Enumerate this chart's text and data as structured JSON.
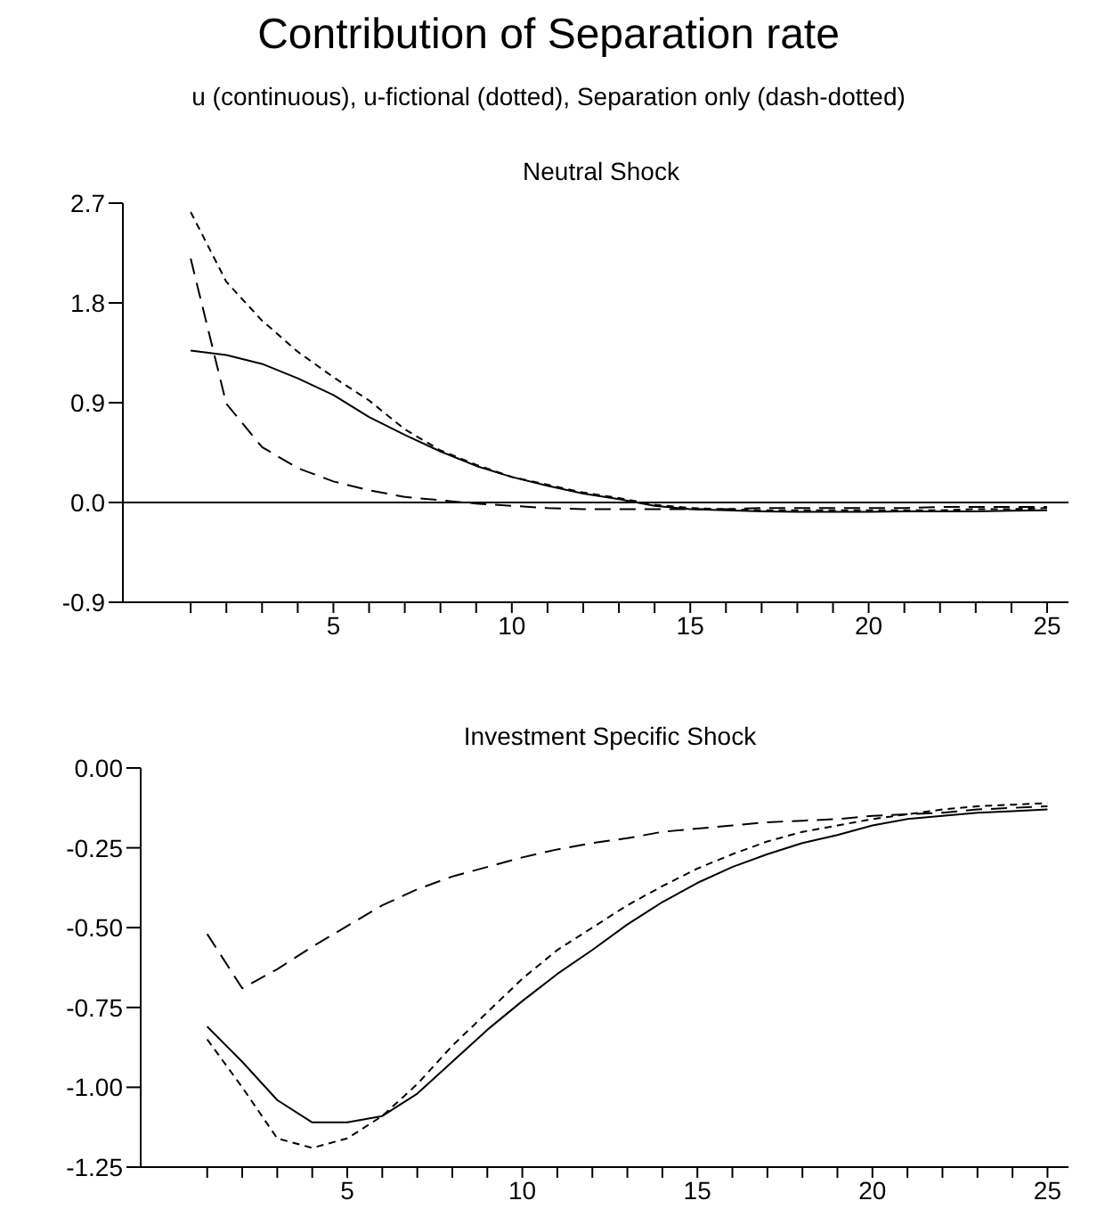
{
  "chart_data": [
    {
      "type": "line",
      "title": "Neutral Shock",
      "x": [
        1,
        2,
        3,
        4,
        5,
        6,
        7,
        8,
        9,
        10,
        11,
        12,
        13,
        14,
        15,
        16,
        17,
        18,
        19,
        20,
        21,
        22,
        23,
        24,
        25
      ],
      "xlim": [
        -0.9,
        25.6
      ],
      "xticks": [
        {
          "value": 1,
          "label": null
        },
        {
          "value": 2,
          "label": null
        },
        {
          "value": 3,
          "label": null
        },
        {
          "value": 4,
          "label": null
        },
        5,
        {
          "value": 6,
          "label": null
        },
        {
          "value": 7,
          "label": null
        },
        {
          "value": 8,
          "label": null
        },
        {
          "value": 9,
          "label": null
        },
        10,
        {
          "value": 11,
          "label": null
        },
        {
          "value": 12,
          "label": null
        },
        {
          "value": 13,
          "label": null
        },
        {
          "value": 14,
          "label": null
        },
        15,
        {
          "value": 16,
          "label": null
        },
        {
          "value": 17,
          "label": null
        },
        {
          "value": 18,
          "label": null
        },
        {
          "value": 19,
          "label": null
        },
        20,
        {
          "value": 21,
          "label": null
        },
        {
          "value": 22,
          "label": null
        },
        {
          "value": 23,
          "label": null
        },
        {
          "value": 24,
          "label": null
        },
        25
      ],
      "ylim": [
        -0.9,
        2.7
      ],
      "yticks": [
        -0.9,
        {
          "value": 0,
          "label": "0.0"
        },
        0.9,
        1.8,
        2.7
      ],
      "ref_lines": [
        {
          "axis": "y",
          "value": 0,
          "color": "#000000"
        }
      ],
      "series": [
        {
          "color": "#000000",
          "line_style": "solid",
          "values": [
            1.37,
            1.33,
            1.25,
            1.12,
            0.97,
            0.77,
            0.61,
            0.46,
            0.33,
            0.23,
            0.15,
            0.08,
            0.03,
            -0.03,
            -0.06,
            -0.07,
            -0.08,
            -0.085,
            -0.085,
            -0.085,
            -0.08,
            -0.08,
            -0.08,
            -0.075,
            -0.07
          ]
        },
        {
          "color": "#000000",
          "line_style": "dotted",
          "values": [
            2.62,
            1.99,
            1.64,
            1.36,
            1.13,
            0.92,
            0.66,
            0.47,
            0.34,
            0.23,
            0.16,
            0.09,
            0.04,
            -0.02,
            -0.05,
            -0.06,
            -0.07,
            -0.07,
            -0.07,
            -0.07,
            -0.07,
            -0.07,
            -0.06,
            -0.06,
            -0.05
          ]
        },
        {
          "color": "#000000",
          "line_style": "dashed",
          "values": [
            2.2,
            0.89,
            0.5,
            0.31,
            0.19,
            0.11,
            0.05,
            0.02,
            -0.01,
            -0.03,
            -0.05,
            -0.06,
            -0.06,
            -0.06,
            -0.06,
            -0.06,
            -0.05,
            -0.05,
            -0.05,
            -0.05,
            -0.05,
            -0.04,
            -0.04,
            -0.04,
            -0.04
          ]
        }
      ]
    },
    {
      "type": "line",
      "title": "Investment Specific Shock",
      "x": [
        1,
        2,
        3,
        4,
        5,
        6,
        7,
        8,
        9,
        10,
        11,
        12,
        13,
        14,
        15,
        16,
        17,
        18,
        19,
        20,
        21,
        22,
        23,
        24,
        25
      ],
      "xlim": [
        -0.9,
        25.6
      ],
      "xticks": [
        {
          "value": 1,
          "label": null
        },
        {
          "value": 2,
          "label": null
        },
        {
          "value": 3,
          "label": null
        },
        {
          "value": 4,
          "label": null
        },
        5,
        {
          "value": 6,
          "label": null
        },
        {
          "value": 7,
          "label": null
        },
        {
          "value": 8,
          "label": null
        },
        {
          "value": 9,
          "label": null
        },
        10,
        {
          "value": 11,
          "label": null
        },
        {
          "value": 12,
          "label": null
        },
        {
          "value": 13,
          "label": null
        },
        {
          "value": 14,
          "label": null
        },
        15,
        {
          "value": 16,
          "label": null
        },
        {
          "value": 17,
          "label": null
        },
        {
          "value": 18,
          "label": null
        },
        {
          "value": 19,
          "label": null
        },
        20,
        {
          "value": 21,
          "label": null
        },
        {
          "value": 22,
          "label": null
        },
        {
          "value": 23,
          "label": null
        },
        {
          "value": 24,
          "label": null
        },
        25
      ],
      "ylim": [
        -1.25,
        0
      ],
      "yticks": [
        -1.25,
        {
          "value": -1,
          "label": "-1.00"
        },
        -0.75,
        {
          "value": -0.5,
          "label": "-0.50"
        },
        -0.25,
        {
          "value": 0,
          "label": "0.00"
        }
      ],
      "series": [
        {
          "color": "#000000",
          "line_style": "solid",
          "values": [
            -0.81,
            -0.92,
            -1.04,
            -1.11,
            -1.11,
            -1.09,
            -1.02,
            -0.92,
            -0.82,
            -0.73,
            -0.645,
            -0.57,
            -0.49,
            -0.42,
            -0.36,
            -0.31,
            -0.27,
            -0.235,
            -0.21,
            -0.18,
            -0.16,
            -0.15,
            -0.14,
            -0.135,
            -0.13
          ]
        },
        {
          "color": "#000000",
          "line_style": "dotted",
          "values": [
            -0.85,
            -1.0,
            -1.16,
            -1.19,
            -1.16,
            -1.09,
            -0.99,
            -0.87,
            -0.765,
            -0.66,
            -0.57,
            -0.5,
            -0.43,
            -0.37,
            -0.315,
            -0.27,
            -0.23,
            -0.2,
            -0.18,
            -0.16,
            -0.145,
            -0.13,
            -0.12,
            -0.115,
            -0.11
          ]
        },
        {
          "color": "#000000",
          "line_style": "dashed",
          "values": [
            -0.52,
            -0.69,
            -0.63,
            -0.56,
            -0.495,
            -0.43,
            -0.38,
            -0.34,
            -0.31,
            -0.28,
            -0.255,
            -0.235,
            -0.22,
            -0.2,
            -0.19,
            -0.18,
            -0.17,
            -0.165,
            -0.16,
            -0.15,
            -0.145,
            -0.14,
            -0.13,
            -0.125,
            -0.12
          ]
        }
      ]
    },
    {
      "type": "other",
      "title": "Contribution of Separation rate",
      "subtitle": "u (continuous), u-fictional (dotted), Separation only (dash-dotted)"
    }
  ]
}
